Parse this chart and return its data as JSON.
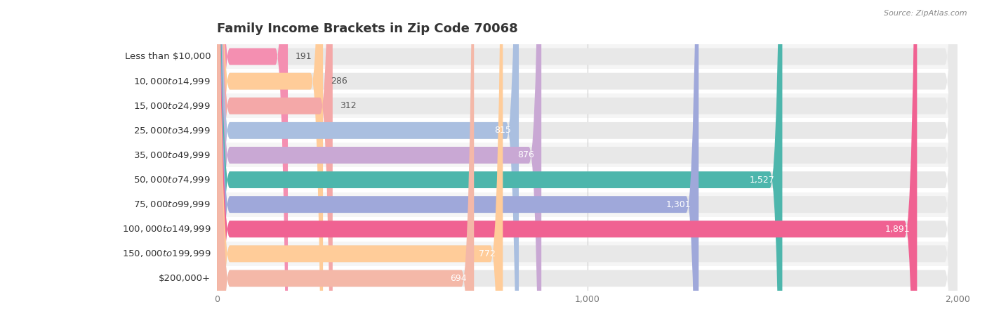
{
  "title": "Family Income Brackets in Zip Code 70068",
  "source": "Source: ZipAtlas.com",
  "categories": [
    "Less than $10,000",
    "$10,000 to $14,999",
    "$15,000 to $24,999",
    "$25,000 to $34,999",
    "$35,000 to $49,999",
    "$50,000 to $74,999",
    "$75,000 to $99,999",
    "$100,000 to $149,999",
    "$150,000 to $199,999",
    "$200,000+"
  ],
  "values": [
    191,
    286,
    312,
    815,
    876,
    1527,
    1301,
    1891,
    772,
    694
  ],
  "bar_colors": [
    "#F48FB1",
    "#FFCC99",
    "#F4A8A8",
    "#AABFE0",
    "#C9A8D4",
    "#4DB6AC",
    "#9FA8DA",
    "#F06292",
    "#FFCC99",
    "#F4B8A8"
  ],
  "bar_bg_color": "#EEEEEE",
  "background_color": "#FFFFFF",
  "row_bg_colors": [
    "#F8F8F8",
    "#FFFFFF"
  ],
  "xlim": [
    0,
    2000
  ],
  "xticks": [
    0,
    1000,
    2000
  ],
  "title_fontsize": 13,
  "label_fontsize": 9.5,
  "value_fontsize": 9,
  "bar_height": 0.68
}
